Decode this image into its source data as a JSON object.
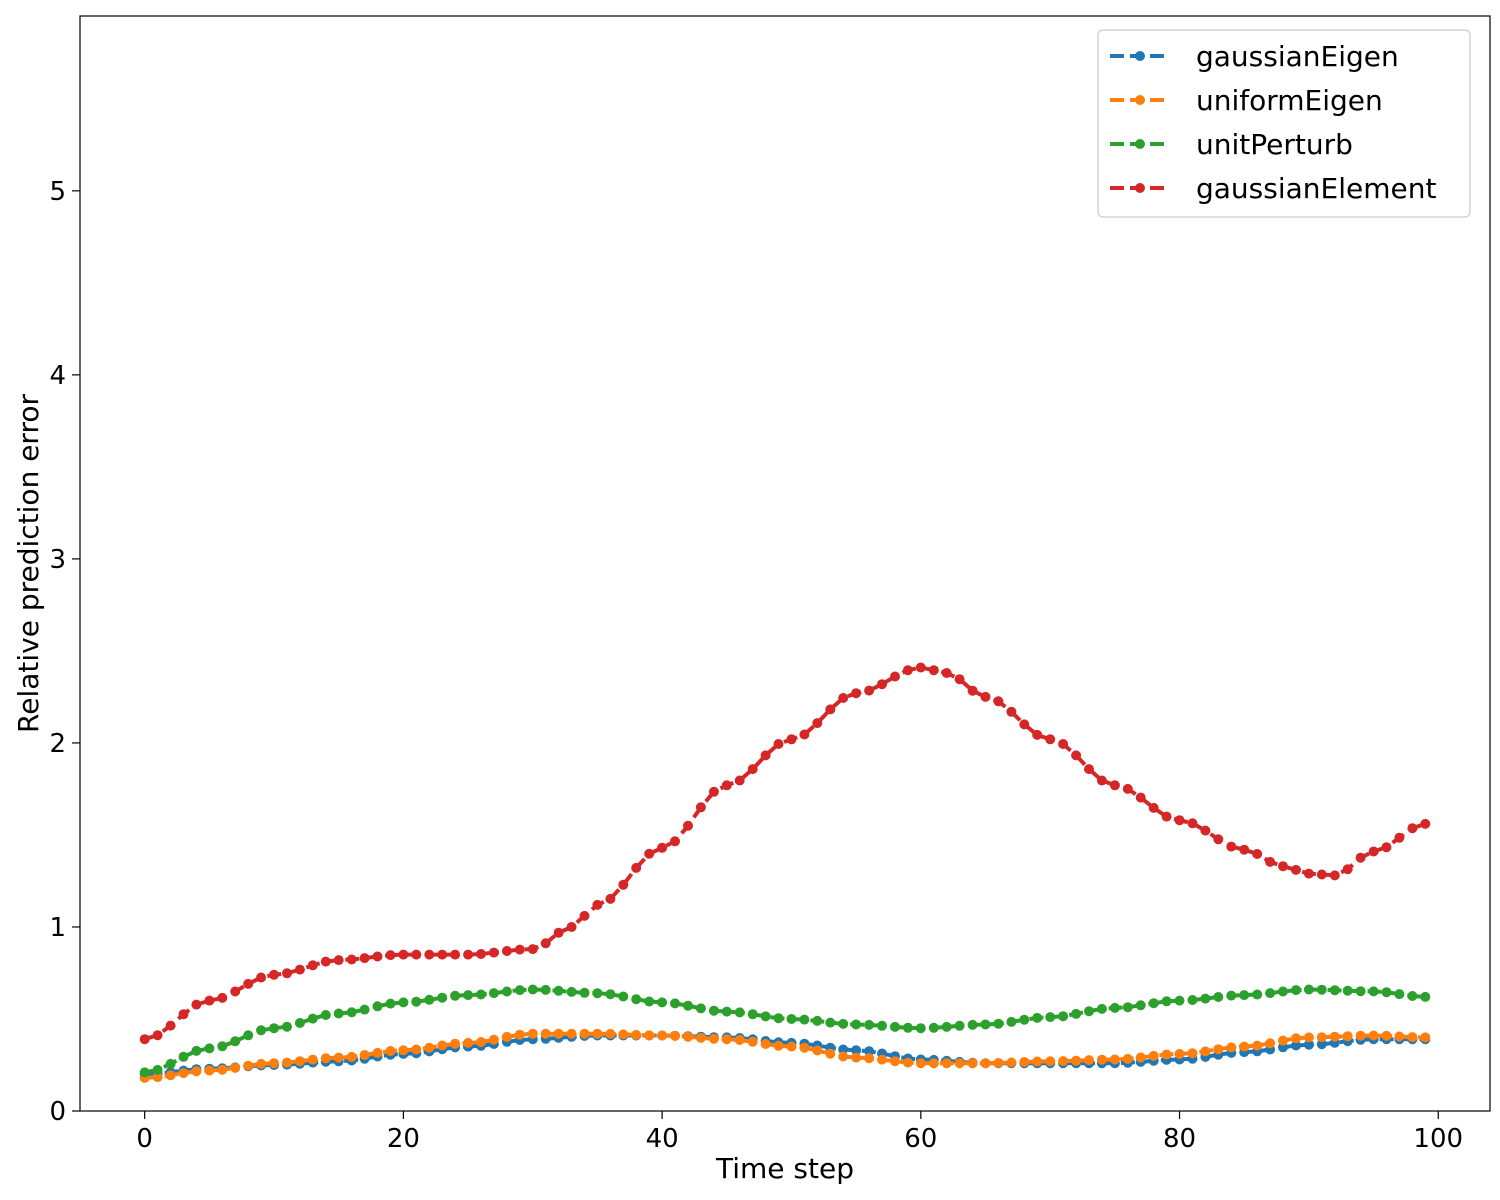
{
  "chart_data": {
    "type": "line",
    "title": "",
    "xlabel": "Time step",
    "ylabel": "Relative prediction error",
    "xlim": [
      -5,
      104
    ],
    "ylim": [
      0,
      5.95
    ],
    "xticks": [
      0,
      20,
      40,
      60,
      80,
      100
    ],
    "yticks": [
      0,
      1,
      2,
      3,
      4,
      5
    ],
    "grid": false,
    "legend_position": "top-right",
    "x_anchor_note": "",
    "series": [
      {
        "name": "gaussianEigen",
        "color": "#1f77b4",
        "anchors": [
          [
            0,
            0.2
          ],
          [
            5,
            0.23
          ],
          [
            10,
            0.25
          ],
          [
            15,
            0.27
          ],
          [
            20,
            0.31
          ],
          [
            25,
            0.35
          ],
          [
            30,
            0.39
          ],
          [
            35,
            0.41
          ],
          [
            40,
            0.41
          ],
          [
            45,
            0.4
          ],
          [
            50,
            0.37
          ],
          [
            55,
            0.33
          ],
          [
            60,
            0.28
          ],
          [
            65,
            0.26
          ],
          [
            70,
            0.26
          ],
          [
            75,
            0.26
          ],
          [
            80,
            0.28
          ],
          [
            85,
            0.32
          ],
          [
            90,
            0.36
          ],
          [
            95,
            0.39
          ],
          [
            99,
            0.39
          ]
        ]
      },
      {
        "name": "uniformEigen",
        "color": "#ff7f0e",
        "anchors": [
          [
            0,
            0.18
          ],
          [
            5,
            0.22
          ],
          [
            10,
            0.26
          ],
          [
            15,
            0.29
          ],
          [
            20,
            0.33
          ],
          [
            25,
            0.37
          ],
          [
            30,
            0.42
          ],
          [
            35,
            0.42
          ],
          [
            40,
            0.41
          ],
          [
            45,
            0.39
          ],
          [
            50,
            0.35
          ],
          [
            55,
            0.29
          ],
          [
            60,
            0.26
          ],
          [
            65,
            0.26
          ],
          [
            70,
            0.27
          ],
          [
            75,
            0.28
          ],
          [
            80,
            0.31
          ],
          [
            85,
            0.35
          ],
          [
            90,
            0.4
          ],
          [
            95,
            0.41
          ],
          [
            99,
            0.4
          ]
        ]
      },
      {
        "name": "unitPerturb",
        "color": "#2ca02c",
        "anchors": [
          [
            0,
            0.21
          ],
          [
            5,
            0.34
          ],
          [
            10,
            0.45
          ],
          [
            15,
            0.53
          ],
          [
            20,
            0.59
          ],
          [
            25,
            0.63
          ],
          [
            30,
            0.66
          ],
          [
            35,
            0.64
          ],
          [
            40,
            0.59
          ],
          [
            45,
            0.54
          ],
          [
            50,
            0.5
          ],
          [
            55,
            0.47
          ],
          [
            60,
            0.45
          ],
          [
            65,
            0.47
          ],
          [
            70,
            0.51
          ],
          [
            75,
            0.56
          ],
          [
            80,
            0.6
          ],
          [
            85,
            0.63
          ],
          [
            90,
            0.66
          ],
          [
            95,
            0.65
          ],
          [
            99,
            0.62
          ]
        ]
      },
      {
        "name": "gaussianElement",
        "color": "#d62728",
        "anchors": [
          [
            0,
            0.39
          ],
          [
            5,
            0.6
          ],
          [
            10,
            0.74
          ],
          [
            15,
            0.82
          ],
          [
            20,
            0.85
          ],
          [
            25,
            0.85
          ],
          [
            30,
            0.88
          ],
          [
            33,
            1.0
          ],
          [
            35,
            1.12
          ],
          [
            40,
            1.43
          ],
          [
            45,
            1.77
          ],
          [
            50,
            2.02
          ],
          [
            55,
            2.27
          ],
          [
            60,
            2.41
          ],
          [
            62,
            2.38
          ],
          [
            65,
            2.25
          ],
          [
            70,
            2.02
          ],
          [
            75,
            1.77
          ],
          [
            80,
            1.58
          ],
          [
            85,
            1.42
          ],
          [
            88,
            1.33
          ],
          [
            90,
            1.29
          ],
          [
            92,
            1.28
          ],
          [
            95,
            1.41
          ],
          [
            99,
            1.56
          ]
        ]
      }
    ]
  }
}
